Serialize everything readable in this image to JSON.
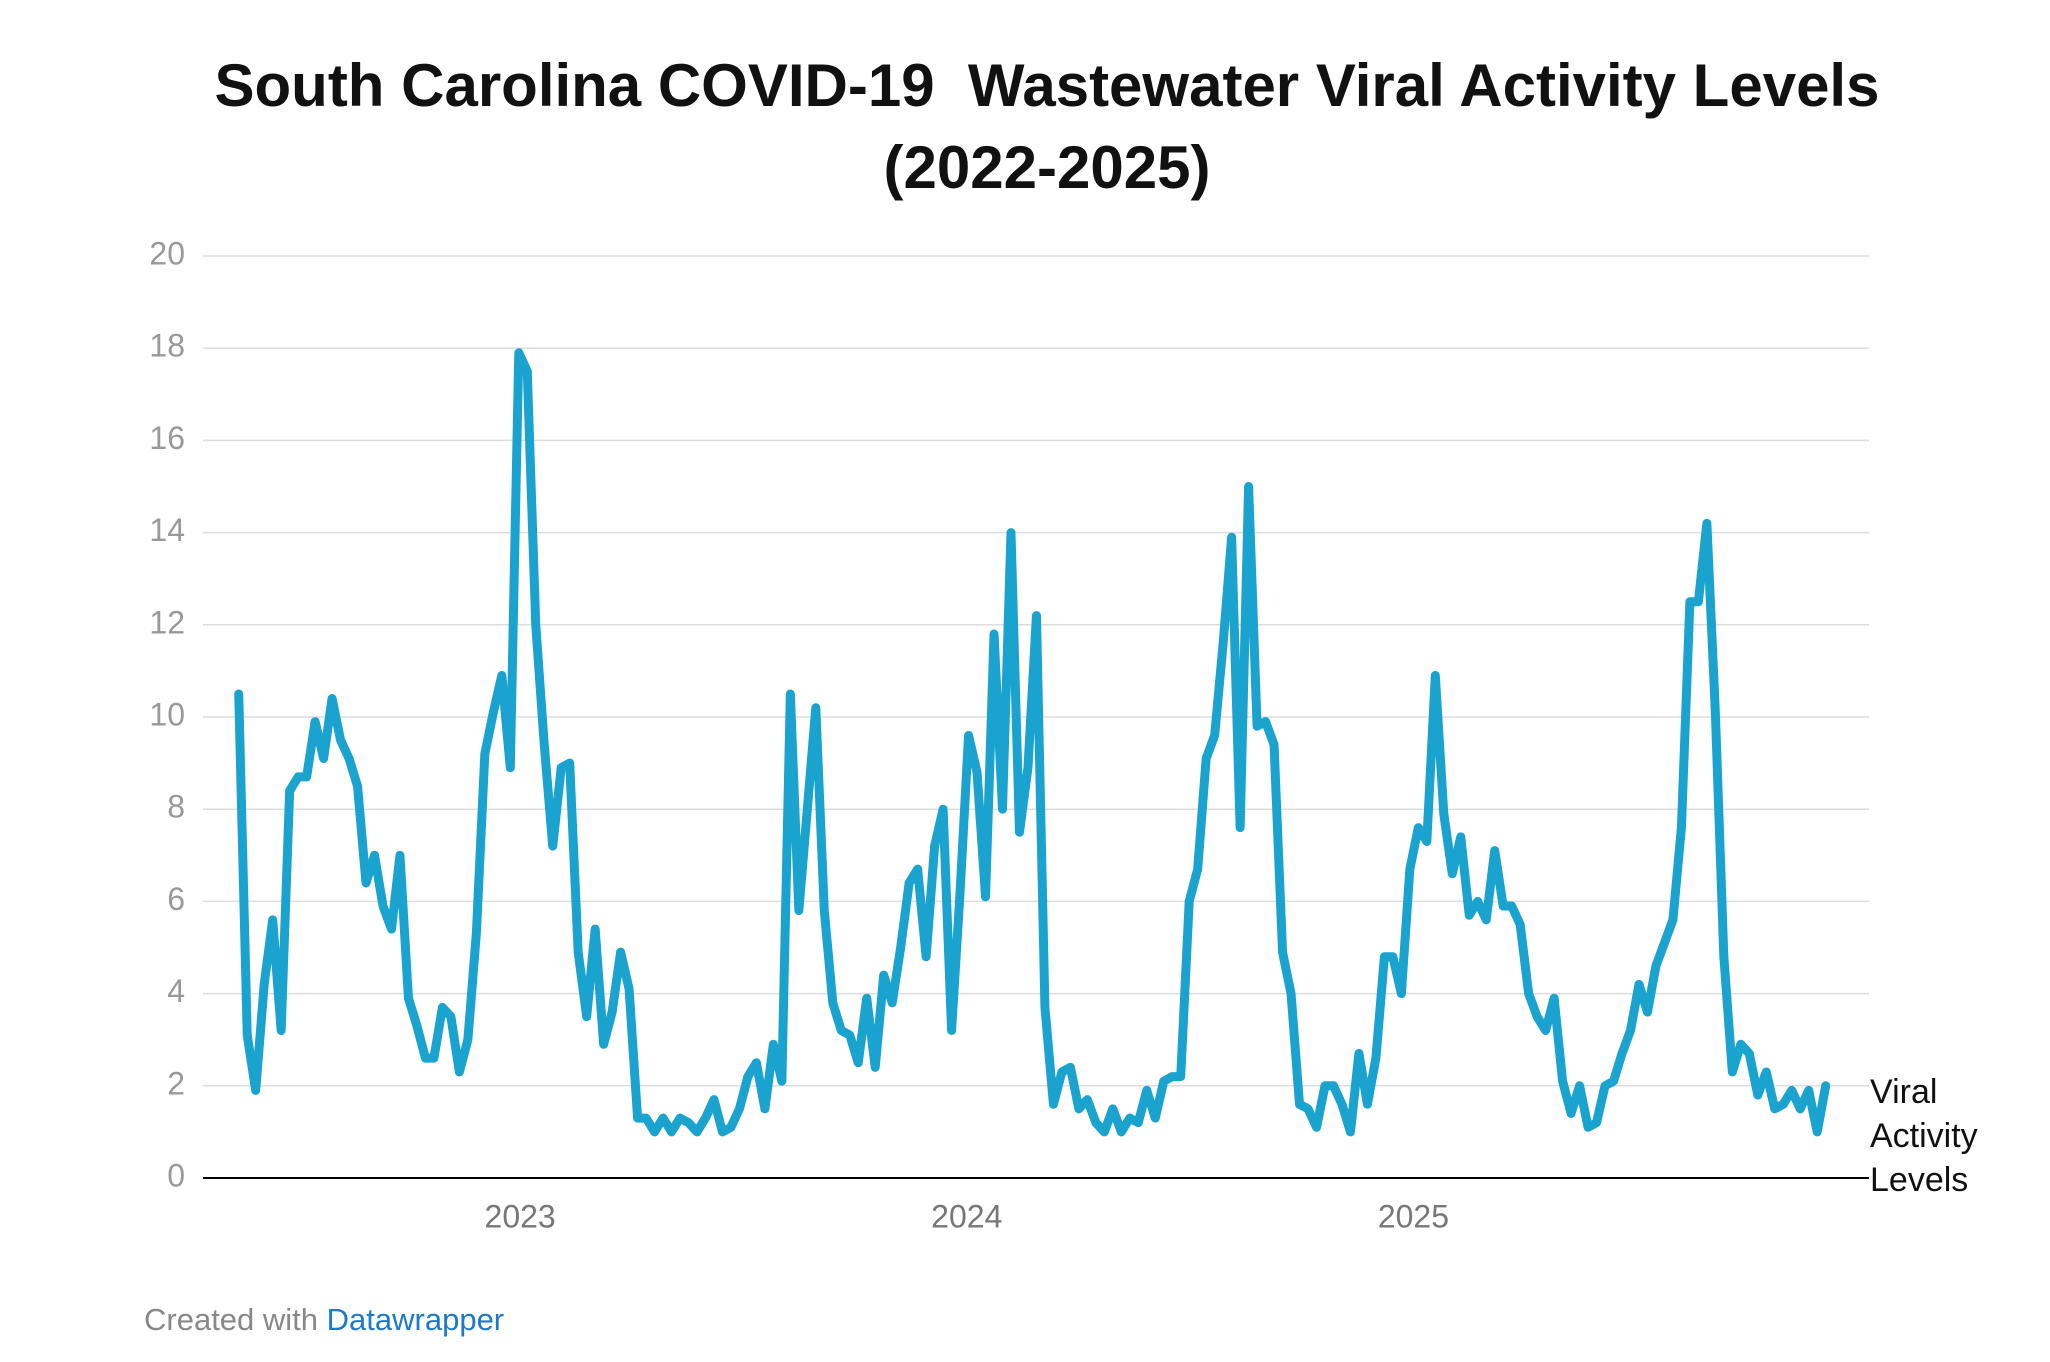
{
  "chart_data": {
    "type": "line",
    "title": "South Carolina COVID-19  Wastewater Viral Activity Levels (2022-2025)",
    "x": [
      2022.37,
      2022.389,
      2022.408,
      2022.427,
      2022.446,
      2022.465,
      2022.484,
      2022.503,
      2022.522,
      2022.541,
      2022.56,
      2022.579,
      2022.598,
      2022.617,
      2022.636,
      2022.655,
      2022.674,
      2022.693,
      2022.712,
      2022.731,
      2022.75,
      2022.769,
      2022.788,
      2022.807,
      2022.826,
      2022.845,
      2022.864,
      2022.883,
      2022.902,
      2022.921,
      2022.94,
      2022.959,
      2022.978,
      2022.997,
      2023.016,
      2023.035,
      2023.054,
      2023.073,
      2023.092,
      2023.111,
      2023.13,
      2023.149,
      2023.168,
      2023.187,
      2023.206,
      2023.225,
      2023.244,
      2023.263,
      2023.282,
      2023.301,
      2023.32,
      2023.339,
      2023.358,
      2023.377,
      2023.396,
      2023.415,
      2023.434,
      2023.453,
      2023.472,
      2023.491,
      2023.51,
      2023.529,
      2023.548,
      2023.567,
      2023.586,
      2023.605,
      2023.624,
      2023.643,
      2023.662,
      2023.681,
      2023.7,
      2023.719,
      2023.738,
      2023.757,
      2023.776,
      2023.795,
      2023.814,
      2023.833,
      2023.852,
      2023.871,
      2023.89,
      2023.909,
      2023.928,
      2023.947,
      2023.966,
      2023.985,
      2024.004,
      2024.023,
      2024.042,
      2024.061,
      2024.08,
      2024.099,
      2024.118,
      2024.137,
      2024.156,
      2024.175,
      2024.194,
      2024.213,
      2024.232,
      2024.251,
      2024.27,
      2024.289,
      2024.308,
      2024.327,
      2024.346,
      2024.365,
      2024.384,
      2024.403,
      2024.422,
      2024.441,
      2024.46,
      2024.479,
      2024.498,
      2024.517,
      2024.536,
      2024.555,
      2024.574,
      2024.593,
      2024.612,
      2024.631,
      2024.65,
      2024.669,
      2024.688,
      2024.707,
      2024.726,
      2024.745,
      2024.764,
      2024.783,
      2024.802,
      2024.821,
      2024.84,
      2024.859,
      2024.878,
      2024.897,
      2024.916,
      2024.935,
      2024.954,
      2024.973,
      2024.992,
      2025.011,
      2025.03,
      2025.049,
      2025.068,
      2025.087,
      2025.106,
      2025.125,
      2025.144,
      2025.163,
      2025.182,
      2025.201,
      2025.22,
      2025.239,
      2025.258,
      2025.277,
      2025.296,
      2025.315,
      2025.334,
      2025.353,
      2025.372,
      2025.391,
      2025.41,
      2025.429,
      2025.448,
      2025.467,
      2025.486,
      2025.505,
      2025.524,
      2025.543,
      2025.562,
      2025.581,
      2025.6,
      2025.619,
      2025.638,
      2025.657,
      2025.676,
      2025.695,
      2025.714,
      2025.733,
      2025.752,
      2025.771,
      2025.79,
      2025.809,
      2025.828,
      2025.847,
      2025.866,
      2025.885,
      2025.904,
      2025.923
    ],
    "series": [
      {
        "name": "Viral Activity Levels",
        "color": "#1ba3cf",
        "values": [
          10.5,
          3.1,
          1.9,
          4.2,
          5.6,
          3.2,
          8.4,
          8.7,
          8.7,
          9.9,
          9.1,
          10.4,
          9.5,
          9.1,
          8.5,
          6.4,
          7.0,
          5.9,
          5.4,
          7.0,
          3.9,
          3.3,
          2.6,
          2.6,
          3.7,
          3.5,
          2.3,
          3.0,
          5.3,
          9.2,
          10.1,
          10.9,
          8.9,
          17.9,
          17.5,
          12.0,
          9.4,
          7.2,
          8.9,
          9.0,
          4.9,
          3.5,
          5.4,
          2.9,
          3.6,
          4.9,
          4.1,
          1.3,
          1.3,
          1.0,
          1.3,
          1.0,
          1.3,
          1.2,
          1.0,
          1.3,
          1.7,
          1.0,
          1.1,
          1.5,
          2.2,
          2.5,
          1.5,
          2.9,
          2.1,
          10.5,
          5.8,
          8.0,
          10.2,
          5.8,
          3.8,
          3.2,
          3.1,
          2.5,
          3.9,
          2.4,
          4.4,
          3.8,
          5.0,
          6.4,
          6.7,
          4.8,
          7.2,
          8.0,
          3.2,
          6.2,
          9.6,
          8.8,
          6.1,
          11.8,
          8.0,
          14.0,
          7.5,
          8.9,
          12.2,
          3.7,
          1.6,
          2.3,
          2.4,
          1.5,
          1.7,
          1.2,
          1.0,
          1.5,
          1.0,
          1.3,
          1.2,
          1.9,
          1.3,
          2.1,
          2.2,
          2.2,
          6.0,
          6.7,
          9.1,
          9.6,
          11.6,
          13.9,
          7.6,
          15.0,
          9.8,
          9.9,
          9.4,
          4.9,
          4.0,
          1.6,
          1.5,
          1.1,
          2.0,
          2.0,
          1.6,
          1.0,
          2.7,
          1.6,
          2.6,
          4.8,
          4.8,
          4.0,
          6.7,
          7.6,
          7.3,
          10.9,
          7.9,
          6.6,
          7.4,
          5.7,
          6.0,
          5.6,
          7.1,
          5.9,
          5.9,
          5.5,
          4.0,
          3.5,
          3.2,
          3.9,
          2.1,
          1.4,
          2.0,
          1.1,
          1.2,
          2.0,
          2.1,
          2.7,
          3.2,
          4.2,
          3.6,
          4.6,
          5.1,
          5.6,
          7.6,
          12.5,
          12.5,
          14.2,
          10.1,
          4.8,
          2.3,
          2.9,
          2.7,
          1.8,
          2.3,
          1.5,
          1.6,
          1.9,
          1.5,
          1.9,
          1.0,
          2.0
        ]
      }
    ],
    "xlim": [
      2022.29,
      2026.02
    ],
    "xticks": [
      2023,
      2024,
      2025
    ],
    "ylim": [
      0,
      20
    ],
    "yticks": [
      0,
      2,
      4,
      6,
      8,
      10,
      12,
      14,
      16,
      18,
      20
    ],
    "grid": true,
    "footer": {
      "text": "Created with",
      "link": "Datawrapper"
    }
  }
}
